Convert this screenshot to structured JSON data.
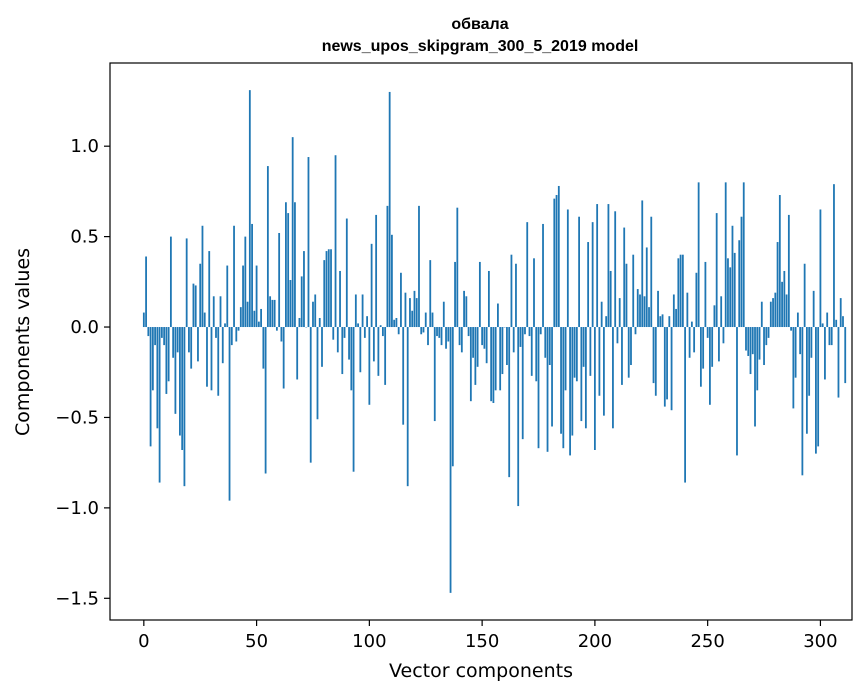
{
  "chart_data": {
    "type": "bar",
    "title": "обвала",
    "subtitle": "news_upos_skipgram_300_5_2019 model",
    "xlabel": "Vector components",
    "ylabel": "Components values",
    "xlim": [
      -15,
      314
    ],
    "ylim": [
      -1.62,
      1.46
    ],
    "x_ticks": [
      0,
      50,
      100,
      150,
      200,
      250,
      300
    ],
    "y_ticks": [
      -1.5,
      -1.0,
      -0.5,
      0.0,
      0.5,
      1.0
    ],
    "x_tick_labels": [
      "0",
      "50",
      "100",
      "150",
      "200",
      "250",
      "300"
    ],
    "y_tick_labels": [
      "−1.5",
      "−1.0",
      "−0.5",
      "0.0",
      "0.5",
      "1.0"
    ],
    "bar_color": "#1f77b4",
    "values": [
      0.08,
      0.39,
      -0.05,
      -0.66,
      -0.35,
      -0.1,
      -0.56,
      -0.86,
      -0.06,
      -0.1,
      -0.37,
      -0.3,
      0.5,
      -0.17,
      -0.48,
      -0.14,
      -0.6,
      -0.68,
      -0.88,
      0.49,
      -0.14,
      -0.23,
      0.24,
      0.23,
      -0.19,
      0.35,
      0.56,
      0.08,
      -0.33,
      0.42,
      -0.35,
      0.17,
      -0.06,
      -0.38,
      0.17,
      -0.2,
      0.02,
      0.34,
      -0.96,
      -0.1,
      0.56,
      -0.08,
      -0.02,
      0.11,
      0.34,
      0.5,
      0.14,
      1.31,
      0.57,
      0.09,
      0.34,
      0.03,
      0.1,
      -0.23,
      -0.81,
      0.89,
      0.17,
      0.15,
      0.15,
      -0.02,
      0.52,
      -0.08,
      -0.34,
      0.69,
      0.63,
      0.26,
      1.05,
      0.69,
      -0.29,
      0.05,
      0.28,
      0.42,
      0.0,
      0.94,
      -0.75,
      0.14,
      0.18,
      -0.51,
      0.05,
      -0.22,
      0.37,
      0.42,
      0.43,
      0.43,
      -0.07,
      0.95,
      -0.14,
      0.31,
      -0.26,
      -0.06,
      0.6,
      -0.18,
      -0.35,
      -0.8,
      0.18,
      0.02,
      -0.25,
      0.18,
      -0.06,
      0.06,
      -0.43,
      0.46,
      -0.19,
      0.62,
      -0.27,
      0.01,
      -0.05,
      -0.32,
      0.67,
      1.3,
      0.51,
      0.04,
      0.05,
      -0.04,
      0.3,
      -0.54,
      0.19,
      -0.88,
      0.16,
      0.09,
      0.2,
      0.16,
      0.67,
      -0.04,
      -0.03,
      0.08,
      -0.1,
      0.37,
      0.08,
      -0.52,
      -0.05,
      -0.06,
      -0.1,
      0.14,
      -0.12,
      -0.08,
      -1.47,
      -0.77,
      0.36,
      0.66,
      -0.1,
      -0.14,
      0.2,
      0.17,
      -0.05,
      -0.41,
      -0.17,
      -0.32,
      -0.22,
      0.36,
      -0.1,
      -0.12,
      -0.2,
      0.31,
      -0.41,
      -0.42,
      -0.35,
      0.13,
      -0.35,
      -0.26,
      0.0,
      -0.21,
      -0.83,
      0.4,
      -0.14,
      0.35,
      -0.99,
      -0.11,
      -0.62,
      -0.04,
      0.58,
      -0.05,
      -0.27,
      0.38,
      -0.3,
      -0.67,
      -0.04,
      0.57,
      -0.17,
      -0.69,
      -0.21,
      -0.55,
      0.71,
      0.73,
      0.78,
      -0.59,
      -0.67,
      -0.35,
      0.65,
      -0.71,
      -0.6,
      -0.28,
      -0.3,
      0.61,
      -0.52,
      -0.22,
      -0.56,
      0.47,
      -0.27,
      0.58,
      -0.68,
      0.68,
      -0.38,
      0.14,
      -0.49,
      0.06,
      0.68,
      0.31,
      -0.56,
      0.64,
      -0.09,
      0.16,
      -0.32,
      0.55,
      0.35,
      -0.28,
      -0.21,
      0.4,
      -0.04,
      0.21,
      0.18,
      0.7,
      0.17,
      0.44,
      0.11,
      0.61,
      -0.31,
      -0.38,
      0.2,
      0.06,
      0.07,
      -0.44,
      -0.4,
      0.06,
      -0.46,
      0.18,
      0.1,
      0.38,
      0.4,
      0.4,
      -0.86,
      0.19,
      -0.17,
      0.03,
      -0.14,
      0.3,
      0.8,
      -0.33,
      -0.23,
      0.36,
      -0.06,
      -0.43,
      -0.22,
      0.12,
      0.63,
      -0.19,
      0.17,
      -0.09,
      0.8,
      0.38,
      0.33,
      0.56,
      0.41,
      -0.71,
      0.48,
      0.61,
      0.8,
      -0.13,
      -0.16,
      -0.26,
      -0.15,
      -0.55,
      -0.35,
      -0.18,
      0.14,
      -0.21,
      -0.1,
      -0.06,
      0.14,
      0.16,
      0.19,
      0.47,
      0.73,
      0.25,
      0.31,
      0.18,
      0.62,
      -0.02,
      -0.45,
      -0.28,
      0.08,
      -0.15,
      -0.82,
      0.35,
      -0.59,
      -0.38,
      -0.17,
      0.2,
      -0.7,
      -0.66,
      0.65,
      0.02,
      -0.29,
      0.08,
      -0.1,
      -0.1,
      0.79,
      0.04,
      -0.39,
      0.16,
      0.06,
      -0.31
    ]
  }
}
